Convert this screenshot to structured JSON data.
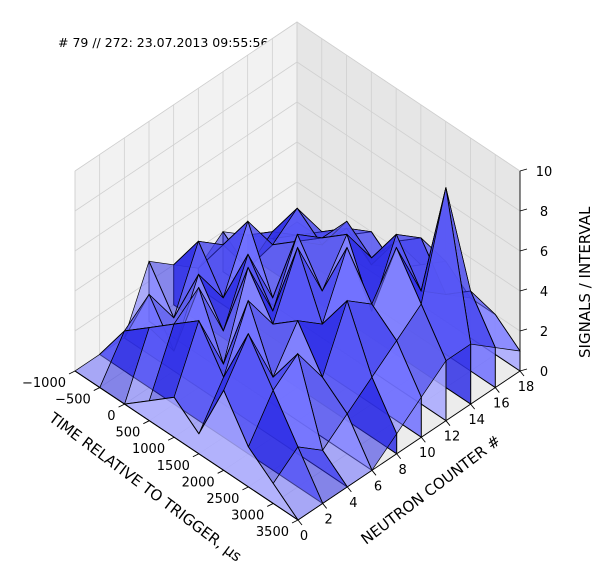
{
  "page": {
    "title": "# 79 // 272: 23.07.2013 09:55:56"
  },
  "chart_data": {
    "type": "surface3d",
    "title": "# 79 // 272: 23.07.2013 09:55:56",
    "xlabel": "TIME RELATIVE TO TRIGGER, µs",
    "ylabel": "NEUTRON COUNTER #",
    "zlabel": "SIGNALS / INTERVAL",
    "xlim": [
      -1000,
      3500
    ],
    "ylim": [
      0,
      18
    ],
    "zlim": [
      0,
      10
    ],
    "x_ticks": [
      "−1000",
      "−500",
      "0",
      "500",
      "1000",
      "1500",
      "2000",
      "2500",
      "3000",
      "3500"
    ],
    "y_ticks": [
      "0",
      "2",
      "4",
      "6",
      "8",
      "10",
      "12",
      "14",
      "16",
      "18"
    ],
    "z_ticks": [
      "0",
      "2",
      "4",
      "6",
      "8",
      "10"
    ],
    "grid": true,
    "colors": {
      "surface_front": "#7070ff",
      "surface_mid": "#3030e6",
      "surface_light": "#a8a8ff",
      "edge": "#000000",
      "pane_left": "#f2f2f2",
      "pane_right": "#e6e6e6",
      "pane_floor": "#ececec",
      "grid": "#d0d0d0"
    },
    "series": [
      {
        "y": 0,
        "x": [
          -1000,
          -500,
          0,
          500,
          1000,
          1500,
          2000,
          2500,
          3000,
          3500
        ],
        "values": [
          0,
          0,
          0,
          1,
          2,
          1,
          4,
          2,
          1,
          0
        ]
      },
      {
        "y": 2,
        "x": [
          -1000,
          -500,
          0,
          500,
          1000,
          1500,
          2000,
          2500,
          3000,
          3500
        ],
        "values": [
          0,
          2,
          3,
          4,
          5,
          3,
          6,
          4,
          2,
          0
        ]
      },
      {
        "y": 4,
        "x": [
          -1000,
          -500,
          0,
          500,
          1000,
          1500,
          2000,
          2500,
          3000,
          3500
        ],
        "values": [
          0,
          3,
          1,
          5,
          2,
          6,
          3,
          5,
          1,
          0
        ]
      },
      {
        "y": 6,
        "x": [
          -1000,
          -500,
          0,
          500,
          1000,
          1500,
          2000,
          2500,
          3000,
          3500
        ],
        "values": [
          3,
          1,
          4,
          2,
          6,
          4,
          5,
          3,
          2,
          0
        ]
      },
      {
        "y": 8,
        "x": [
          -1000,
          -500,
          0,
          500,
          1000,
          1500,
          2000,
          2500,
          3000,
          3500
        ],
        "values": [
          2,
          4,
          2,
          5,
          3,
          7,
          4,
          6,
          3,
          1
        ]
      },
      {
        "y": 10,
        "x": [
          -1000,
          -500,
          0,
          500,
          1000,
          1500,
          2000,
          2500,
          3000,
          3500
        ],
        "values": [
          1,
          3,
          5,
          2,
          6,
          4,
          7,
          5,
          4,
          2
        ]
      },
      {
        "y": 12,
        "x": [
          -1000,
          -500,
          0,
          500,
          1000,
          1500,
          2000,
          2500,
          3000,
          3500
        ],
        "values": [
          2,
          1,
          3,
          4,
          5,
          6,
          3,
          7,
          5,
          3
        ]
      },
      {
        "y": 14,
        "x": [
          -1000,
          -500,
          0,
          500,
          1000,
          1500,
          2000,
          2500,
          3000,
          3500
        ],
        "values": [
          1,
          2,
          4,
          3,
          5,
          4,
          6,
          4,
          10,
          3
        ]
      },
      {
        "y": 16,
        "x": [
          -1000,
          -500,
          0,
          500,
          1000,
          1500,
          2000,
          2500,
          3000,
          3500
        ],
        "values": [
          0,
          1,
          2,
          3,
          2,
          4,
          5,
          3,
          4,
          2
        ]
      },
      {
        "y": 18,
        "x": [
          -1000,
          -500,
          0,
          500,
          1000,
          1500,
          2000,
          2500,
          3000,
          3500
        ],
        "values": [
          0,
          0,
          1,
          2,
          1,
          2,
          3,
          2,
          2,
          1
        ]
      }
    ]
  }
}
